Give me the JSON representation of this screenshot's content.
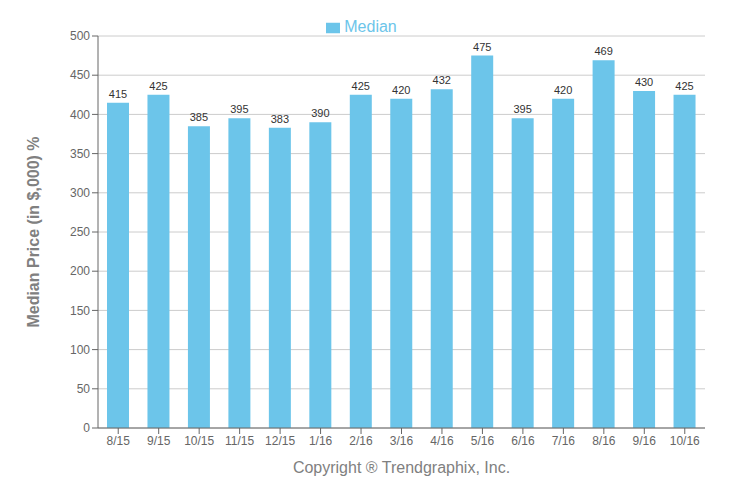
{
  "chart_data": {
    "type": "bar",
    "categories": [
      "8/15",
      "9/15",
      "10/15",
      "11/15",
      "12/15",
      "1/16",
      "2/16",
      "3/16",
      "4/16",
      "5/16",
      "6/16",
      "7/16",
      "8/16",
      "9/16",
      "10/16"
    ],
    "series": [
      {
        "name": "Median",
        "color": "#6CC5EA",
        "values": [
          415,
          425,
          385,
          395,
          383,
          390,
          425,
          420,
          432,
          475,
          395,
          420,
          469,
          430,
          425
        ]
      }
    ],
    "xlabel": "Copyright ® Trendgraphix, Inc.",
    "ylabel": "Median Price (in $,000) %",
    "ylim": [
      0,
      500
    ],
    "yticks": [
      0,
      50,
      100,
      150,
      200,
      250,
      300,
      350,
      400,
      450,
      500
    ],
    "grid": true,
    "legend": "top",
    "data_labels": true
  }
}
